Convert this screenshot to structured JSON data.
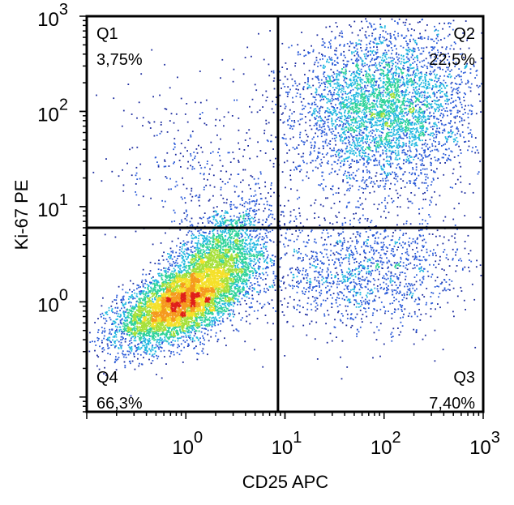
{
  "chart_data": {
    "type": "scatter",
    "subtype": "flow cytometry density dot plot",
    "title": "",
    "xlabel": "CD25 APC",
    "ylabel": "Ki-67 PE",
    "x_scale": "log",
    "y_scale": "log",
    "xlim": [
      0.1,
      1000
    ],
    "ylim": [
      0.07,
      1000
    ],
    "x_ticks": [
      {
        "value": 1,
        "base": "10",
        "exp": "0"
      },
      {
        "value": 10,
        "base": "10",
        "exp": "1"
      },
      {
        "value": 100,
        "base": "10",
        "exp": "2"
      },
      {
        "value": 1000,
        "base": "10",
        "exp": "3"
      }
    ],
    "y_ticks": [
      {
        "value": 1,
        "base": "10",
        "exp": "0"
      },
      {
        "value": 10,
        "base": "10",
        "exp": "1"
      },
      {
        "value": 100,
        "base": "10",
        "exp": "2"
      },
      {
        "value": 1000,
        "base": "10",
        "exp": "3"
      }
    ],
    "gates": {
      "x": 8.5,
      "y": 6.0
    },
    "quadrants": [
      {
        "name": "Q1",
        "percent": "3,75%",
        "position": "top-left"
      },
      {
        "name": "Q2",
        "percent": "22,5%",
        "position": "top-right"
      },
      {
        "name": "Q3",
        "percent": "7,40%",
        "position": "bottom-right"
      },
      {
        "name": "Q4",
        "percent": "66,3%",
        "position": "bottom-left"
      }
    ],
    "populations": [
      {
        "label": "Q4 dense cluster",
        "x_center": 0.8,
        "y_center": 0.95,
        "share": 0.66
      },
      {
        "label": "Q2 activated cluster",
        "x_center": 100,
        "y_center": 110,
        "share": 0.225
      },
      {
        "label": "Q3 spread",
        "x_center": 70,
        "y_center": 2.0,
        "share": 0.074
      },
      {
        "label": "Q1 sparse",
        "x_center": 1.2,
        "y_center": 30,
        "share": 0.0375
      }
    ],
    "colormap": [
      "#1a2a9e",
      "#2b5bd8",
      "#22b8e0",
      "#2fd39a",
      "#a6e03a",
      "#f5e02a",
      "#f59a1e",
      "#e0201a"
    ],
    "grid": false,
    "legend": "none"
  }
}
